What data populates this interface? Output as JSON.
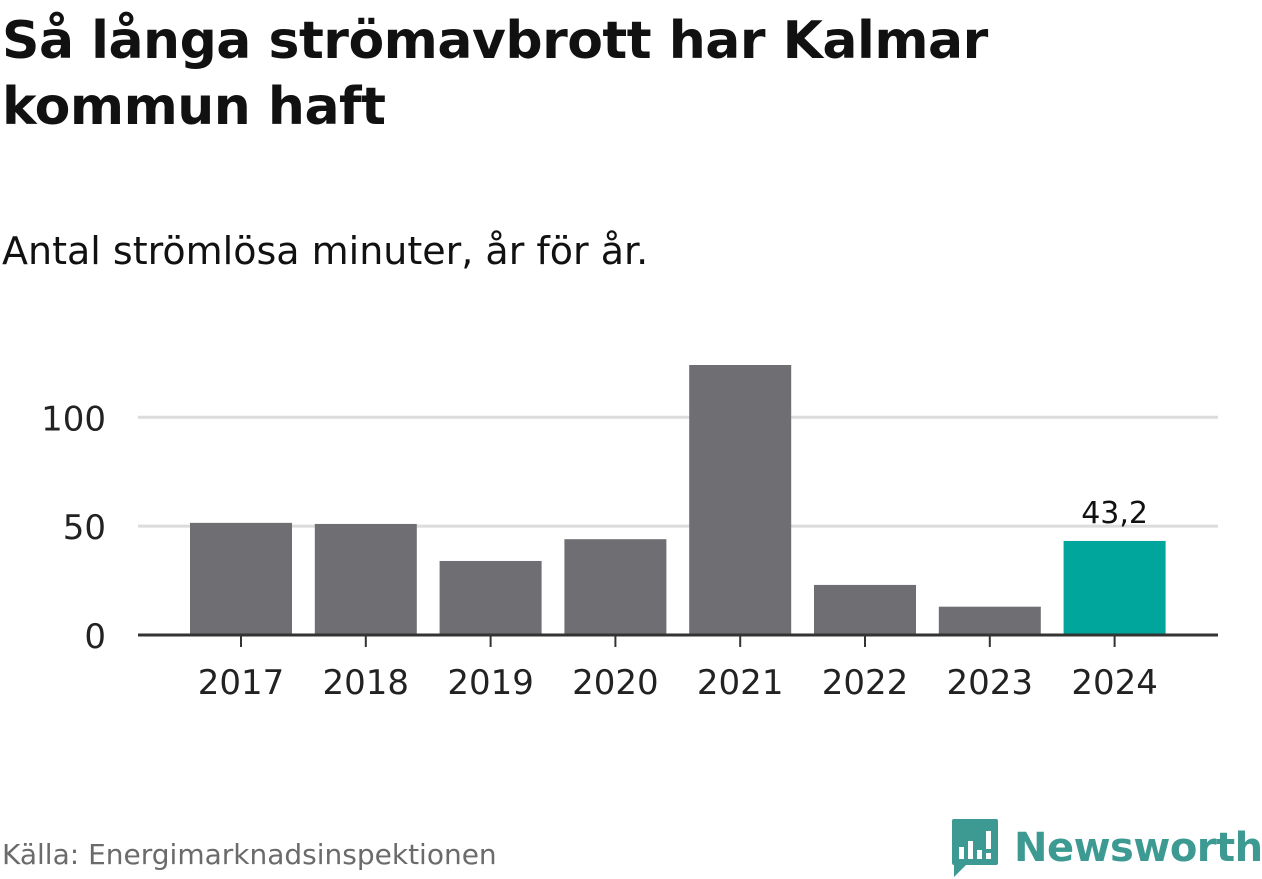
{
  "title": "Så långa strömavbrott har Kalmar kommun haft",
  "subtitle": "Antal strömlösa minuter, år för år.",
  "source": "Källa: Energimarknadsinspektionen",
  "brand": {
    "name": "Newsworthy",
    "icon": "newsworthy-logo-icon",
    "color": "#3d9a92"
  },
  "chart_data": {
    "type": "bar",
    "categories": [
      "2017",
      "2018",
      "2019",
      "2020",
      "2021",
      "2022",
      "2023",
      "2024"
    ],
    "values": [
      51.5,
      51,
      34,
      44,
      124,
      23,
      13,
      43.2
    ],
    "highlight_index": 7,
    "labels": {
      "7": "43,2"
    },
    "yticks": [
      0,
      50,
      100
    ],
    "ylim": [
      0,
      124
    ],
    "grid": true,
    "colors": {
      "bar": "#6f6e73",
      "highlight": "#00a59b",
      "grid": "#dcdcdc",
      "axis": "#333333"
    }
  }
}
